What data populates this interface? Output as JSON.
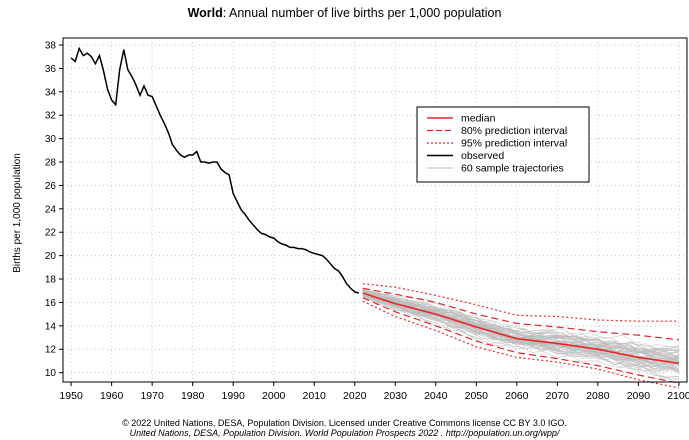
{
  "title": {
    "bold_part": "World",
    "rest": ": Annual number of live births per 1,000 population"
  },
  "footer": {
    "line1": "© 2022 United Nations, DESA, Population Division. Licensed under Creative Commons license CC BY 3.0 IGO.",
    "line2": "United Nations, DESA, Population Division. World Population Prospects 2022 . http://population.un.org/wpp/"
  },
  "colors": {
    "observed": "#000000",
    "median": "#e8262a",
    "trajectories": "#bbbbbb",
    "grid": "#c8c8c8"
  },
  "chart_data": {
    "type": "line",
    "title": "World: Annual number of live births per 1,000 population",
    "xlabel": "",
    "ylabel": "Births per 1,000 population",
    "xlim": [
      1948,
      2102
    ],
    "ylim": [
      9.2,
      38.6
    ],
    "xticks": [
      1950,
      1960,
      1970,
      1980,
      1990,
      2000,
      2010,
      2020,
      2030,
      2040,
      2050,
      2060,
      2070,
      2080,
      2090,
      2100
    ],
    "yticks": [
      10,
      12,
      14,
      16,
      18,
      20,
      22,
      24,
      26,
      28,
      30,
      32,
      34,
      36,
      38
    ],
    "grid": true,
    "legend_position": "right",
    "legend": [
      {
        "label": "median",
        "style": "solid-red"
      },
      {
        "label": "80% prediction interval",
        "style": "dashed-red"
      },
      {
        "label": "95% prediction interval",
        "style": "dotted-red"
      },
      {
        "label": "observed",
        "style": "solid-black"
      },
      {
        "label": "60 sample trajectories",
        "style": "solid-gray"
      }
    ],
    "observed": {
      "x": [
        1950,
        1951,
        1952,
        1953,
        1954,
        1955,
        1956,
        1957,
        1958,
        1959,
        1960,
        1961,
        1962,
        1963,
        1964,
        1965,
        1966,
        1967,
        1968,
        1969,
        1970,
        1971,
        1972,
        1973,
        1974,
        1975,
        1976,
        1977,
        1978,
        1979,
        1980,
        1981,
        1982,
        1983,
        1984,
        1985,
        1986,
        1987,
        1988,
        1989,
        1990,
        1991,
        1992,
        1993,
        1994,
        1995,
        1996,
        1997,
        1998,
        1999,
        2000,
        2001,
        2002,
        2003,
        2004,
        2005,
        2006,
        2007,
        2008,
        2009,
        2010,
        2011,
        2012,
        2013,
        2014,
        2015,
        2016,
        2017,
        2018,
        2019,
        2020,
        2021
      ],
      "y": [
        36.9,
        36.6,
        37.7,
        37.1,
        37.3,
        37.0,
        36.4,
        37.1,
        35.8,
        34.2,
        33.3,
        32.9,
        35.9,
        37.6,
        35.9,
        35.3,
        34.6,
        33.7,
        34.5,
        33.7,
        33.6,
        32.8,
        32.0,
        31.3,
        30.5,
        29.5,
        29.0,
        28.6,
        28.4,
        28.6,
        28.6,
        28.9,
        28.0,
        28.0,
        27.9,
        28.0,
        28.0,
        27.4,
        27.1,
        26.9,
        25.3,
        24.6,
        23.9,
        23.5,
        23.0,
        22.6,
        22.2,
        21.9,
        21.8,
        21.6,
        21.5,
        21.2,
        21.0,
        20.9,
        20.7,
        20.7,
        20.6,
        20.6,
        20.5,
        20.3,
        20.2,
        20.1,
        20.0,
        19.7,
        19.3,
        18.9,
        18.7,
        18.2,
        17.6,
        17.2,
        16.9,
        16.8
      ]
    },
    "median": {
      "x": [
        2022,
        2030,
        2040,
        2050,
        2060,
        2070,
        2080,
        2090,
        2100
      ],
      "y": [
        16.8,
        15.9,
        15.0,
        13.9,
        12.9,
        12.5,
        12.0,
        11.3,
        10.8
      ]
    },
    "pi80_upper": {
      "x": [
        2022,
        2030,
        2040,
        2050,
        2060,
        2070,
        2080,
        2090,
        2100
      ],
      "y": [
        17.2,
        16.7,
        16.0,
        15.0,
        14.2,
        13.9,
        13.5,
        13.2,
        12.8
      ]
    },
    "pi80_lower": {
      "x": [
        2022,
        2030,
        2040,
        2050,
        2060,
        2070,
        2080,
        2090,
        2100
      ],
      "y": [
        16.4,
        15.2,
        14.0,
        12.7,
        11.7,
        11.2,
        10.6,
        9.8,
        9.1
      ]
    },
    "pi95_upper": {
      "x": [
        2022,
        2030,
        2040,
        2050,
        2060,
        2070,
        2080,
        2090,
        2100
      ],
      "y": [
        17.6,
        17.3,
        16.6,
        15.8,
        14.9,
        14.8,
        14.5,
        14.4,
        14.4
      ]
    },
    "pi95_lower": {
      "x": [
        2022,
        2030,
        2040,
        2050,
        2060,
        2070,
        2080,
        2090,
        2100
      ],
      "y": [
        16.1,
        14.8,
        13.6,
        12.2,
        11.3,
        10.9,
        10.3,
        9.4,
        8.7
      ]
    },
    "sample_trajectory_count": 60
  }
}
